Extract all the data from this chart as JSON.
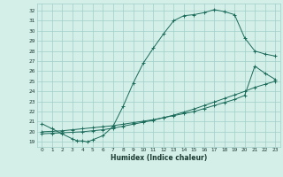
{
  "xlabel": "Humidex (Indice chaleur)",
  "bg_color": "#d4eee8",
  "grid_color": "#9ecfc7",
  "line_color": "#1a6b5a",
  "xlim": [
    -0.5,
    23.5
  ],
  "ylim": [
    18.5,
    32.7
  ],
  "xticks": [
    0,
    1,
    2,
    3,
    4,
    5,
    6,
    7,
    8,
    9,
    10,
    11,
    12,
    13,
    14,
    15,
    16,
    17,
    18,
    19,
    20,
    21,
    22,
    23
  ],
  "yticks": [
    19,
    20,
    21,
    22,
    23,
    24,
    25,
    26,
    27,
    28,
    29,
    30,
    31,
    32
  ],
  "curve1_x": [
    0,
    1,
    2,
    3,
    3.5,
    4,
    4.5,
    5,
    6,
    7,
    8,
    9,
    10,
    11,
    12,
    13,
    14,
    15,
    16,
    17,
    18,
    19,
    20,
    21,
    22,
    23
  ],
  "curve1_y": [
    20.8,
    20.3,
    19.8,
    19.3,
    19.1,
    19.1,
    19.0,
    19.2,
    19.6,
    20.5,
    22.5,
    24.8,
    26.8,
    28.3,
    29.7,
    31.0,
    31.5,
    31.6,
    31.8,
    32.1,
    31.9,
    31.6,
    29.3,
    28.0,
    27.7,
    27.5
  ],
  "curve2_x": [
    0,
    1,
    2,
    3,
    4,
    5,
    6,
    7,
    8,
    9,
    10,
    11,
    12,
    13,
    14,
    15,
    16,
    17,
    18,
    19,
    20,
    21,
    22,
    23
  ],
  "curve2_y": [
    20.0,
    20.05,
    20.1,
    20.2,
    20.3,
    20.4,
    20.5,
    20.6,
    20.75,
    20.9,
    21.05,
    21.2,
    21.4,
    21.6,
    21.8,
    22.0,
    22.3,
    22.6,
    22.9,
    23.2,
    23.6,
    26.5,
    25.8,
    25.2
  ],
  "curve3_x": [
    0,
    1,
    2,
    3,
    4,
    5,
    6,
    7,
    8,
    9,
    10,
    11,
    12,
    13,
    14,
    15,
    16,
    17,
    18,
    19,
    20,
    21,
    22,
    23
  ],
  "curve3_y": [
    19.8,
    19.85,
    19.9,
    19.95,
    20.0,
    20.1,
    20.2,
    20.35,
    20.55,
    20.75,
    20.95,
    21.15,
    21.4,
    21.65,
    21.95,
    22.25,
    22.6,
    22.95,
    23.3,
    23.65,
    24.0,
    24.4,
    24.7,
    25.0
  ]
}
